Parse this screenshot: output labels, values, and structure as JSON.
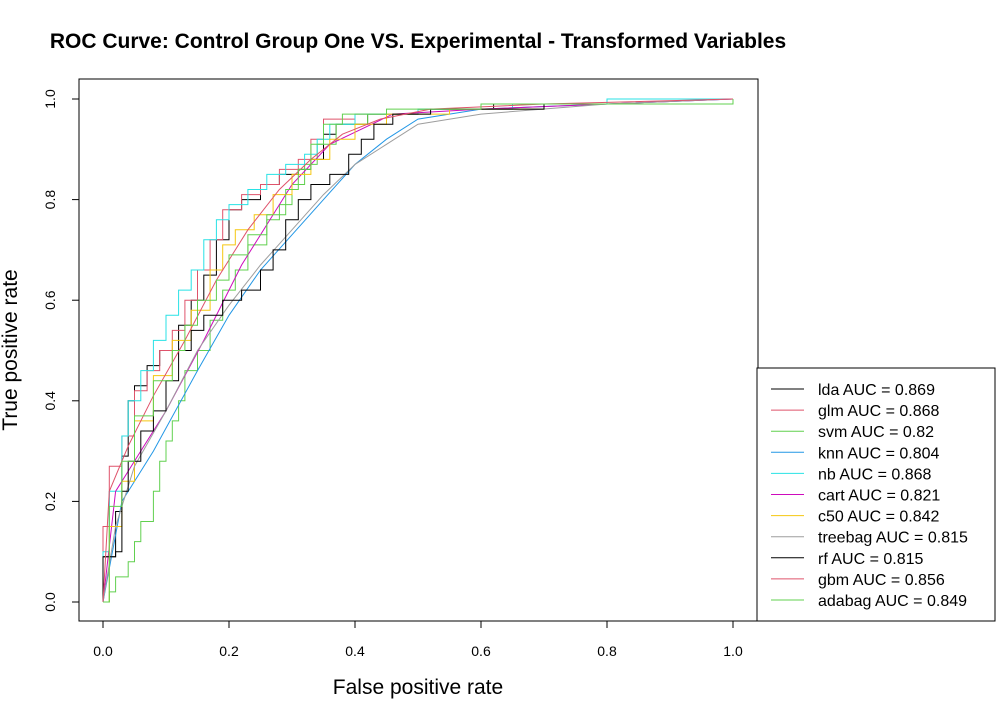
{
  "chart_data": {
    "type": "line",
    "title": "ROC Curve: Control Group One VS. Experimental - Transformed Variables",
    "xlabel": "False positive rate",
    "ylabel": "True positive rate",
    "xlim": [
      0,
      1
    ],
    "ylim": [
      0,
      1
    ],
    "x_ticks": [
      "0.0",
      "0.2",
      "0.4",
      "0.6",
      "0.8",
      "1.0"
    ],
    "y_ticks": [
      "0.0",
      "0.2",
      "0.4",
      "0.6",
      "0.8",
      "1.0"
    ],
    "grid": false,
    "legend_position": "bottom-right",
    "series": [
      {
        "name": "lda AUC = 0.869",
        "color": "#000000",
        "step": true,
        "points": [
          [
            0,
            0
          ],
          [
            0.0,
            0.09
          ],
          [
            0.02,
            0.18
          ],
          [
            0.03,
            0.29
          ],
          [
            0.04,
            0.4
          ],
          [
            0.05,
            0.43
          ],
          [
            0.07,
            0.47
          ],
          [
            0.09,
            0.5
          ],
          [
            0.12,
            0.55
          ],
          [
            0.14,
            0.6
          ],
          [
            0.16,
            0.65
          ],
          [
            0.18,
            0.72
          ],
          [
            0.2,
            0.78
          ],
          [
            0.22,
            0.8
          ],
          [
            0.25,
            0.83
          ],
          [
            0.28,
            0.85
          ],
          [
            0.31,
            0.86
          ],
          [
            0.33,
            0.88
          ],
          [
            0.35,
            0.93
          ],
          [
            0.37,
            0.95
          ],
          [
            0.42,
            0.97
          ],
          [
            0.5,
            0.98
          ],
          [
            0.62,
            0.99
          ],
          [
            0.8,
            1.0
          ],
          [
            1.0,
            1.0
          ]
        ]
      },
      {
        "name": "glm AUC = 0.868",
        "color": "#DF536B",
        "step": true,
        "points": [
          [
            0,
            0
          ],
          [
            0.0,
            0.15
          ],
          [
            0.01,
            0.27
          ],
          [
            0.03,
            0.33
          ],
          [
            0.05,
            0.42
          ],
          [
            0.07,
            0.46
          ],
          [
            0.09,
            0.5
          ],
          [
            0.11,
            0.54
          ],
          [
            0.13,
            0.6
          ],
          [
            0.15,
            0.66
          ],
          [
            0.17,
            0.72
          ],
          [
            0.19,
            0.78
          ],
          [
            0.22,
            0.81
          ],
          [
            0.25,
            0.83
          ],
          [
            0.28,
            0.86
          ],
          [
            0.31,
            0.88
          ],
          [
            0.33,
            0.92
          ],
          [
            0.35,
            0.96
          ],
          [
            0.4,
            0.97
          ],
          [
            0.5,
            0.98
          ],
          [
            0.65,
            0.99
          ],
          [
            0.8,
            1.0
          ],
          [
            1.0,
            1.0
          ]
        ]
      },
      {
        "name": "svm AUC = 0.82",
        "color": "#61D04F",
        "step": true,
        "points": [
          [
            0,
            0
          ],
          [
            0.01,
            0.02
          ],
          [
            0.02,
            0.05
          ],
          [
            0.04,
            0.08
          ],
          [
            0.05,
            0.12
          ],
          [
            0.06,
            0.16
          ],
          [
            0.08,
            0.22
          ],
          [
            0.09,
            0.28
          ],
          [
            0.1,
            0.32
          ],
          [
            0.11,
            0.36
          ],
          [
            0.12,
            0.4
          ],
          [
            0.13,
            0.46
          ],
          [
            0.15,
            0.5
          ],
          [
            0.17,
            0.56
          ],
          [
            0.19,
            0.62
          ],
          [
            0.21,
            0.66
          ],
          [
            0.23,
            0.71
          ],
          [
            0.26,
            0.76
          ],
          [
            0.28,
            0.79
          ],
          [
            0.3,
            0.83
          ],
          [
            0.32,
            0.87
          ],
          [
            0.34,
            0.91
          ],
          [
            0.37,
            0.95
          ],
          [
            0.42,
            0.97
          ],
          [
            0.5,
            0.98
          ],
          [
            0.7,
            0.99
          ],
          [
            1.0,
            1.0
          ]
        ]
      },
      {
        "name": "knn AUC = 0.804",
        "color": "#2297E6",
        "step": false,
        "points": [
          [
            0,
            0
          ],
          [
            0.03,
            0.2
          ],
          [
            0.08,
            0.3
          ],
          [
            0.15,
            0.46
          ],
          [
            0.2,
            0.57
          ],
          [
            0.25,
            0.66
          ],
          [
            0.3,
            0.73
          ],
          [
            0.35,
            0.8
          ],
          [
            0.4,
            0.87
          ],
          [
            0.45,
            0.92
          ],
          [
            0.5,
            0.96
          ],
          [
            0.6,
            0.98
          ],
          [
            0.8,
            0.99
          ],
          [
            1.0,
            1.0
          ]
        ]
      },
      {
        "name": "nb AUC = 0.868",
        "color": "#28E2E5",
        "step": true,
        "points": [
          [
            0,
            0
          ],
          [
            0.0,
            0.1
          ],
          [
            0.01,
            0.22
          ],
          [
            0.03,
            0.33
          ],
          [
            0.04,
            0.4
          ],
          [
            0.06,
            0.46
          ],
          [
            0.08,
            0.52
          ],
          [
            0.1,
            0.57
          ],
          [
            0.12,
            0.62
          ],
          [
            0.14,
            0.66
          ],
          [
            0.16,
            0.72
          ],
          [
            0.18,
            0.76
          ],
          [
            0.2,
            0.79
          ],
          [
            0.23,
            0.82
          ],
          [
            0.26,
            0.85
          ],
          [
            0.29,
            0.87
          ],
          [
            0.32,
            0.89
          ],
          [
            0.34,
            0.92
          ],
          [
            0.36,
            0.95
          ],
          [
            0.4,
            0.97
          ],
          [
            0.5,
            0.98
          ],
          [
            0.65,
            0.99
          ],
          [
            0.8,
            1.0
          ],
          [
            1.0,
            1.0
          ]
        ]
      },
      {
        "name": "cart AUC = 0.821",
        "color": "#CD0BBC",
        "step": false,
        "points": [
          [
            0,
            0
          ],
          [
            0.02,
            0.22
          ],
          [
            0.1,
            0.38
          ],
          [
            0.16,
            0.52
          ],
          [
            0.22,
            0.67
          ],
          [
            0.3,
            0.83
          ],
          [
            0.36,
            0.91
          ],
          [
            0.46,
            0.97
          ],
          [
            0.6,
            0.98
          ],
          [
            1.0,
            1.0
          ]
        ]
      },
      {
        "name": "c50 AUC = 0.842",
        "color": "#F5C710",
        "step": true,
        "points": [
          [
            0,
            0
          ],
          [
            0.01,
            0.15
          ],
          [
            0.03,
            0.24
          ],
          [
            0.05,
            0.36
          ],
          [
            0.08,
            0.45
          ],
          [
            0.11,
            0.52
          ],
          [
            0.14,
            0.58
          ],
          [
            0.17,
            0.66
          ],
          [
            0.19,
            0.71
          ],
          [
            0.21,
            0.74
          ],
          [
            0.24,
            0.77
          ],
          [
            0.27,
            0.81
          ],
          [
            0.3,
            0.85
          ],
          [
            0.33,
            0.88
          ],
          [
            0.36,
            0.92
          ],
          [
            0.4,
            0.95
          ],
          [
            0.45,
            0.97
          ],
          [
            0.55,
            0.98
          ],
          [
            0.7,
            0.99
          ],
          [
            1.0,
            1.0
          ]
        ]
      },
      {
        "name": "treebag AUC = 0.815",
        "color": "#9E9E9E",
        "step": false,
        "points": [
          [
            0,
            0
          ],
          [
            0.02,
            0.15
          ],
          [
            0.05,
            0.27
          ],
          [
            0.1,
            0.38
          ],
          [
            0.15,
            0.5
          ],
          [
            0.2,
            0.59
          ],
          [
            0.25,
            0.67
          ],
          [
            0.3,
            0.74
          ],
          [
            0.35,
            0.81
          ],
          [
            0.4,
            0.87
          ],
          [
            0.45,
            0.91
          ],
          [
            0.5,
            0.95
          ],
          [
            0.6,
            0.97
          ],
          [
            0.8,
            0.99
          ],
          [
            1.0,
            1.0
          ]
        ]
      },
      {
        "name": "rf AUC = 0.815",
        "color": "#000000",
        "step": true,
        "points": [
          [
            0,
            0
          ],
          [
            0.0,
            0.09
          ],
          [
            0.02,
            0.1
          ],
          [
            0.03,
            0.22
          ],
          [
            0.04,
            0.28
          ],
          [
            0.06,
            0.34
          ],
          [
            0.08,
            0.38
          ],
          [
            0.1,
            0.44
          ],
          [
            0.12,
            0.5
          ],
          [
            0.14,
            0.54
          ],
          [
            0.16,
            0.57
          ],
          [
            0.19,
            0.6
          ],
          [
            0.22,
            0.62
          ],
          [
            0.25,
            0.66
          ],
          [
            0.27,
            0.7
          ],
          [
            0.29,
            0.76
          ],
          [
            0.31,
            0.8
          ],
          [
            0.33,
            0.83
          ],
          [
            0.36,
            0.85
          ],
          [
            0.39,
            0.89
          ],
          [
            0.41,
            0.92
          ],
          [
            0.43,
            0.95
          ],
          [
            0.46,
            0.97
          ],
          [
            0.52,
            0.98
          ],
          [
            0.7,
            0.99
          ],
          [
            1.0,
            1.0
          ]
        ]
      },
      {
        "name": "gbm AUC = 0.856",
        "color": "#DF536B",
        "step": false,
        "points": [
          [
            0,
            0
          ],
          [
            0.01,
            0.22
          ],
          [
            0.04,
            0.31
          ],
          [
            0.08,
            0.41
          ],
          [
            0.13,
            0.52
          ],
          [
            0.18,
            0.64
          ],
          [
            0.23,
            0.74
          ],
          [
            0.28,
            0.82
          ],
          [
            0.33,
            0.88
          ],
          [
            0.38,
            0.93
          ],
          [
            0.44,
            0.96
          ],
          [
            0.52,
            0.98
          ],
          [
            0.7,
            0.99
          ],
          [
            1.0,
            1.0
          ]
        ]
      },
      {
        "name": "adabag AUC = 0.849",
        "color": "#61D04F",
        "step": true,
        "points": [
          [
            0,
            0
          ],
          [
            0.01,
            0.19
          ],
          [
            0.03,
            0.28
          ],
          [
            0.05,
            0.37
          ],
          [
            0.08,
            0.44
          ],
          [
            0.11,
            0.5
          ],
          [
            0.13,
            0.55
          ],
          [
            0.15,
            0.6
          ],
          [
            0.18,
            0.64
          ],
          [
            0.2,
            0.69
          ],
          [
            0.23,
            0.73
          ],
          [
            0.26,
            0.77
          ],
          [
            0.29,
            0.82
          ],
          [
            0.31,
            0.86
          ],
          [
            0.33,
            0.91
          ],
          [
            0.35,
            0.95
          ],
          [
            0.38,
            0.97
          ],
          [
            0.45,
            0.98
          ],
          [
            0.6,
            0.99
          ],
          [
            1.0,
            1.0
          ]
        ]
      }
    ]
  }
}
